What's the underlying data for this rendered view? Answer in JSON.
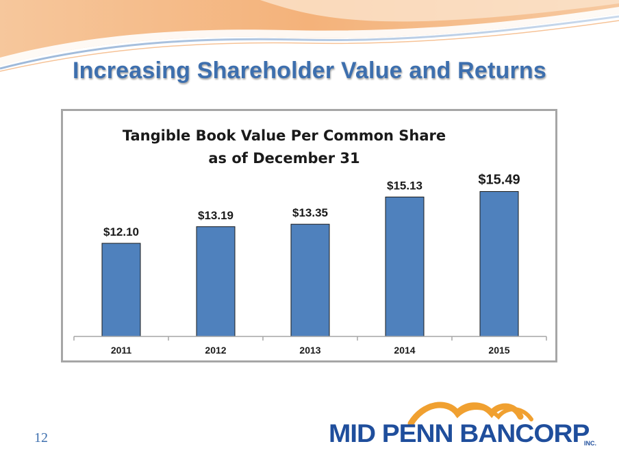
{
  "slide": {
    "title": "Increasing Shareholder Value and Returns",
    "page_number": "12"
  },
  "logo": {
    "text": "MID PENN BANCORP",
    "suffix": "INC."
  },
  "colors": {
    "bar": "#4f81bd",
    "title": "#3d6fae",
    "logo": "#1f4e9c",
    "logo_swoosh": "#f0a030"
  },
  "chart_data": {
    "type": "bar",
    "title": [
      "Tangible Book Value Per Common Share",
      "as of December 31"
    ],
    "categories": [
      "2011",
      "2012",
      "2013",
      "2014",
      "2015"
    ],
    "values": [
      12.1,
      13.19,
      13.35,
      15.13,
      15.49
    ],
    "data_labels": [
      "$12.10",
      "$13.19",
      "$13.35",
      "$15.13",
      "$15.49"
    ],
    "xlabel": "",
    "ylabel": "",
    "ylim": [
      6,
      16.5
    ],
    "grid": false,
    "legend": "none"
  }
}
